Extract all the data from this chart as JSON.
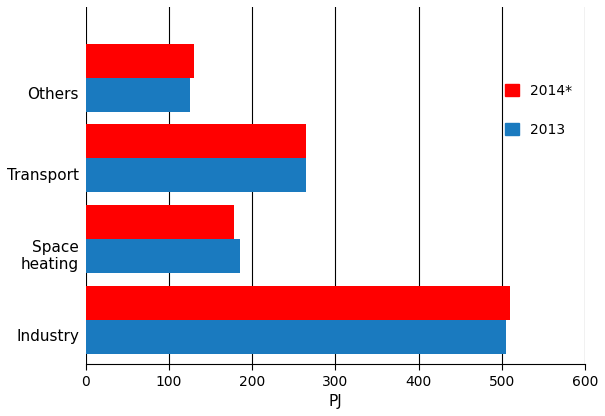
{
  "categories": [
    "Industry",
    "Space\nheating",
    "Transport",
    "Others"
  ],
  "values_2014": [
    510,
    178,
    265,
    130
  ],
  "values_2013": [
    505,
    185,
    265,
    125
  ],
  "color_2014": "#ff0000",
  "color_2013": "#1a7abf",
  "xlabel": "PJ",
  "xlim": [
    0,
    600
  ],
  "xticks": [
    0,
    100,
    200,
    300,
    400,
    500,
    600
  ],
  "legend_2014": "2014*",
  "legend_2013": "2013",
  "bar_height": 0.42,
  "ytick_labels": [
    "Industry",
    "Space\nheating",
    "Transport",
    "Others"
  ]
}
